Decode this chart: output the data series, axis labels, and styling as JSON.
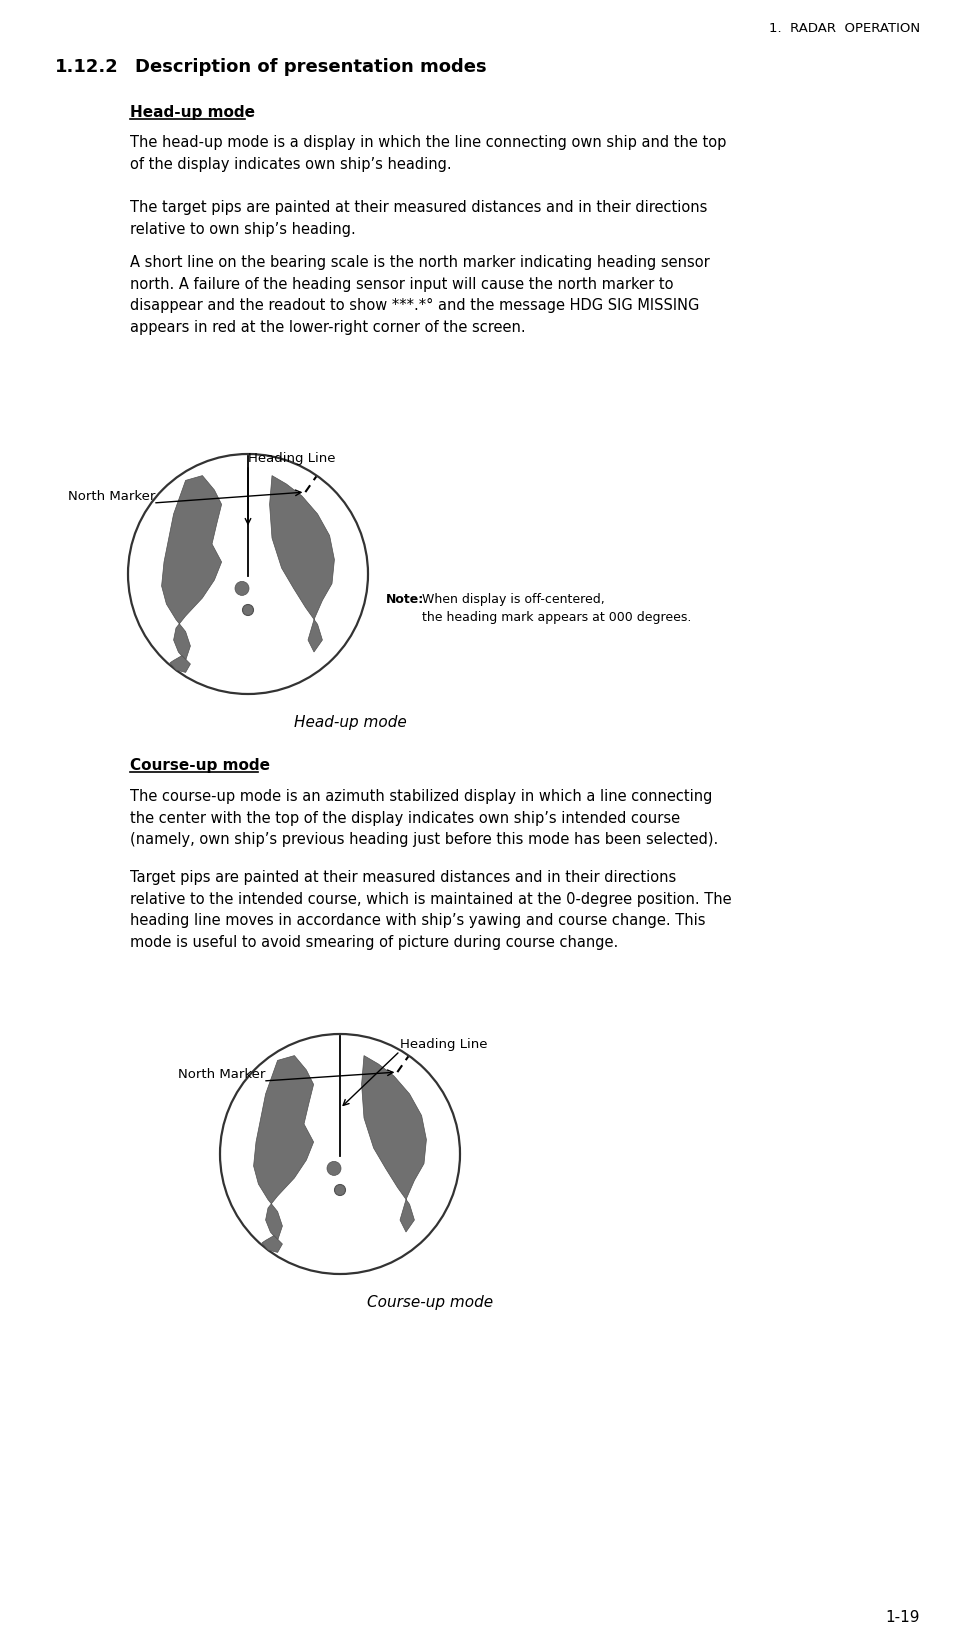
{
  "page_header": "1.  RADAR  OPERATION",
  "section_number": "1.12.2",
  "section_title": "Description of presentation modes",
  "subsection1_title": "Head-up mode",
  "para1": "The head-up mode is a display in which the line connecting own ship and the top\nof the display indicates own ship’s heading.",
  "para2": "The target pips are painted at their measured distances and in their directions\nrelative to own ship’s heading.",
  "para3": "A short line on the bearing scale is the north marker indicating heading sensor\nnorth. A failure of the heading sensor input will cause the north marker to\ndisappear and the readout to show ***.*° and the message HDG SIG MISSING\nappears in red at the lower-right corner of the screen.",
  "note_bold": "Note:",
  "note_text": "When display is off-centered,\nthe heading mark appears at 000 degrees.",
  "diagram1_caption": "Head-up mode",
  "label_north_marker": "North Marker",
  "label_heading_line": "Heading Line",
  "subsection2_title": "Course-up mode",
  "para4": "The course-up mode is an azimuth stabilized display in which a line connecting\nthe center with the top of the display indicates own ship’s intended course\n(namely, own ship’s previous heading just before this mode has been selected).",
  "para5": "Target pips are painted at their measured distances and in their directions\nrelative to the intended course, which is maintained at the 0-degree position. The\nheading line moves in accordance with ship’s yawing and course change. This\nmode is useful to avoid smearing of picture during course change.",
  "diagram2_caption": "Course-up mode",
  "page_number": "1-19",
  "bg_color": "#ffffff",
  "text_color": "#000000"
}
